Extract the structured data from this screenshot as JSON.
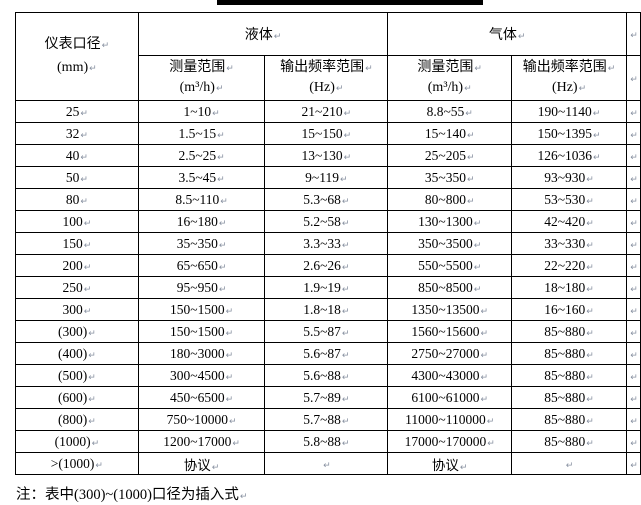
{
  "table": {
    "header": {
      "diameter_label": "仪表口径",
      "diameter_unit": "(mm)",
      "liquid_label": "液体",
      "gas_label": "气体",
      "range_label": "测量范围",
      "range_unit": "(m³/h)",
      "freq_label": "输出频率范围",
      "freq_unit": "(Hz)"
    },
    "rows": [
      {
        "d": "25",
        "lr": "1~10",
        "lf": "21~210",
        "gr": "8.8~55",
        "gf": "190~1140"
      },
      {
        "d": "32",
        "lr": "1.5~15",
        "lf": "15~150",
        "gr": "15~140",
        "gf": "150~1395"
      },
      {
        "d": "40",
        "lr": "2.5~25",
        "lf": "13~130",
        "gr": "25~205",
        "gf": "126~1036"
      },
      {
        "d": "50",
        "lr": "3.5~45",
        "lf": "9~119",
        "gr": "35~350",
        "gf": "93~930"
      },
      {
        "d": "80",
        "lr": "8.5~110",
        "lf": "5.3~68",
        "gr": "80~800",
        "gf": "53~530"
      },
      {
        "d": "100",
        "lr": "16~180",
        "lf": "5.2~58",
        "gr": "130~1300",
        "gf": "42~420"
      },
      {
        "d": "150",
        "lr": "35~350",
        "lf": "3.3~33",
        "gr": "350~3500",
        "gf": "33~330"
      },
      {
        "d": "200",
        "lr": "65~650",
        "lf": "2.6~26",
        "gr": "550~5500",
        "gf": "22~220"
      },
      {
        "d": "250",
        "lr": "95~950",
        "lf": "1.9~19",
        "gr": "850~8500",
        "gf": "18~180"
      },
      {
        "d": "300",
        "lr": "150~1500",
        "lf": "1.8~18",
        "gr": "1350~13500",
        "gf": "16~160"
      },
      {
        "d": "(300)",
        "lr": "150~1500",
        "lf": "5.5~87",
        "gr": "1560~15600",
        "gf": "85~880"
      },
      {
        "d": "(400)",
        "lr": "180~3000",
        "lf": "5.6~87",
        "gr": "2750~27000",
        "gf": "85~880"
      },
      {
        "d": "(500)",
        "lr": "300~4500",
        "lf": "5.6~88",
        "gr": "4300~43000",
        "gf": "85~880"
      },
      {
        "d": "(600)",
        "lr": "450~6500",
        "lf": "5.7~89",
        "gr": "6100~61000",
        "gf": "85~880"
      },
      {
        "d": "(800)",
        "lr": "750~10000",
        "lf": "5.7~88",
        "gr": "11000~110000",
        "gf": "85~880"
      },
      {
        "d": "(1000)",
        "lr": "1200~17000",
        "lf": "5.8~88",
        "gr": "17000~170000",
        "gf": "85~880"
      },
      {
        "d": ">(1000)",
        "lr": "协议",
        "lf": "",
        "gr": "协议",
        "gf": ""
      }
    ]
  },
  "document": {
    "note": "注：表中(300)~(1000)口径为插入式"
  }
}
